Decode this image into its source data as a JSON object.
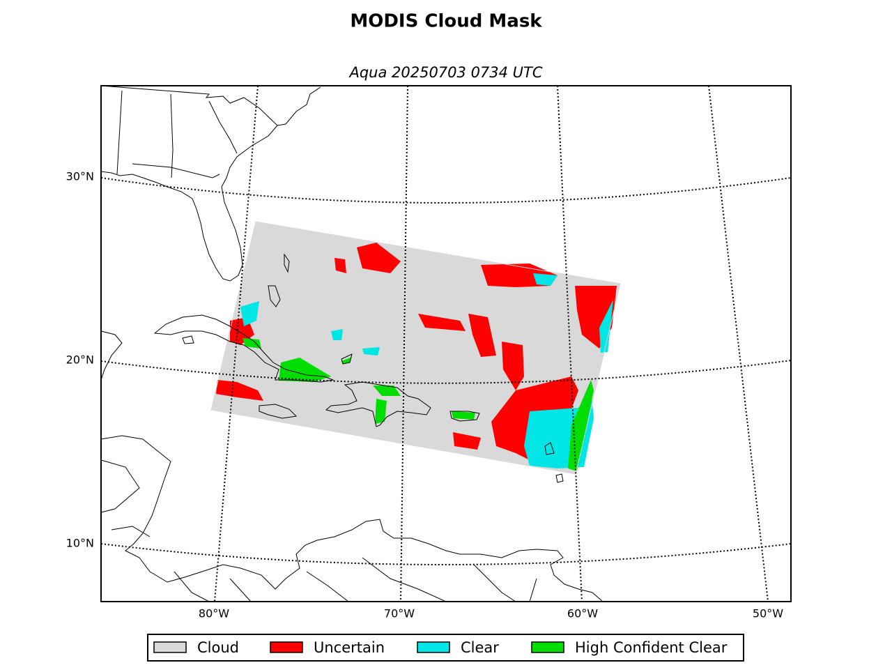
{
  "title": "MODIS Cloud Mask",
  "subtitle": "Aqua 20250703 0734 UTC",
  "map": {
    "latitude_labels": [
      "30°N",
      "20°N",
      "10°N"
    ],
    "longitude_labels": [
      "80°W",
      "70°W",
      "60°W",
      "50°W"
    ]
  },
  "legend": {
    "items": [
      {
        "label": "Cloud",
        "color": "#d9d9d9"
      },
      {
        "label": "Uncertain",
        "color": "#ff0000"
      },
      {
        "label": "Clear",
        "color": "#00e5e5"
      },
      {
        "label": "High Confident Clear",
        "color": "#00dd00"
      }
    ]
  }
}
